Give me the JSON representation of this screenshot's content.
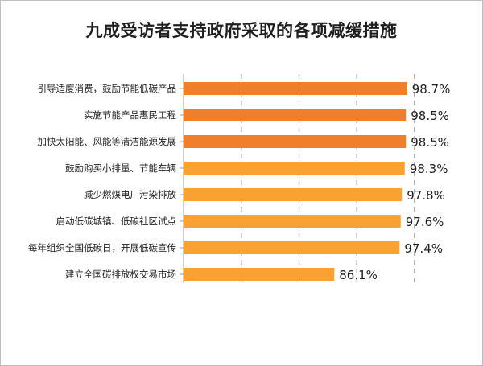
{
  "chart_data": {
    "type": "bar",
    "orientation": "horizontal",
    "title": "九成受访者支持政府采取的各项减缓措施",
    "categories": [
      "引导适度消费，鼓励节能低碳产品",
      "实施节能产品惠民工程",
      "加快太阳能、风能等清洁能源发展",
      "鼓励购买小排量、节能车辆",
      "减少燃煤电厂污染排放",
      "启动低碳城镇、低碳社区试点",
      "每年组织全国低碳日，开展低碳宣传",
      "建立全国碳排放权交易市场"
    ],
    "values": [
      98.7,
      98.5,
      98.5,
      98.3,
      97.8,
      97.6,
      97.4,
      86.1
    ],
    "value_labels": [
      "98.7%",
      "98.5%",
      "98.5%",
      "98.3%",
      "97.8%",
      "97.6%",
      "97.4%",
      "86.1%"
    ],
    "bar_colors": [
      "#F07F2B",
      "#F07F2B",
      "#F07F2B",
      "#F9A232",
      "#F9A232",
      "#F9A232",
      "#F9A232",
      "#F9A232"
    ],
    "xlim": [
      60,
      100
    ],
    "grid": true,
    "xlabel": "",
    "ylabel": ""
  }
}
